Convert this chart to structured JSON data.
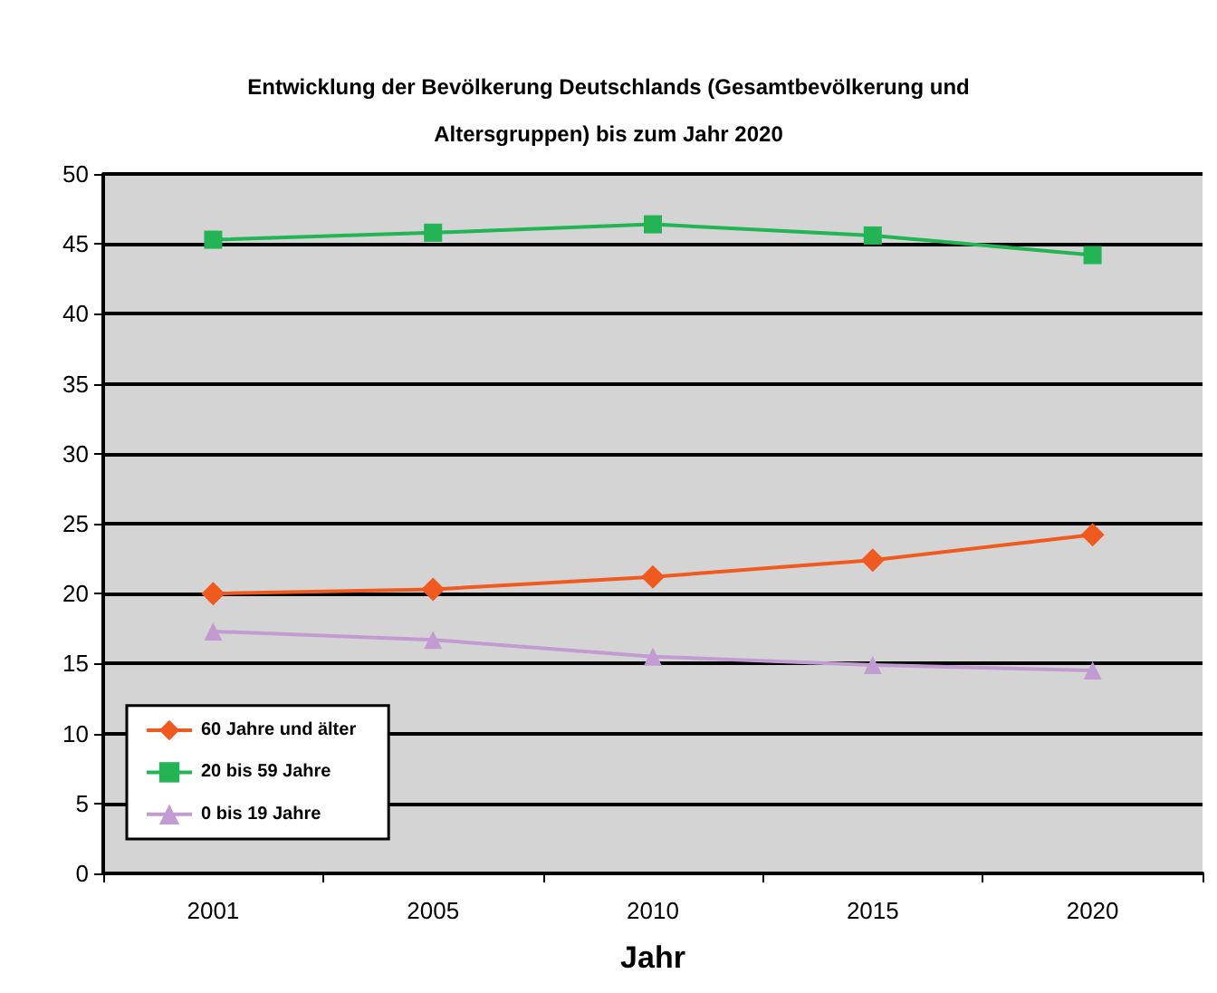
{
  "chart_data": {
    "type": "line",
    "title": "Entwicklung der Bevölkerung Deutschlands (Gesamtbevölkerung und\nAltersgruppen) bis zum Jahr 2020",
    "xlabel": "Jahr",
    "categories": [
      "2001",
      "2005",
      "2010",
      "2015",
      "2020"
    ],
    "series": [
      {
        "name": "60 Jahre und älter",
        "color": "#f05a1e",
        "marker": "diamond",
        "values": [
          20.0,
          20.3,
          21.2,
          22.4,
          24.2
        ]
      },
      {
        "name": "20 bis 59 Jahre",
        "color": "#22b455",
        "marker": "square",
        "values": [
          45.3,
          45.8,
          46.4,
          45.6,
          44.2
        ]
      },
      {
        "name": "0 bis 19 Jahre",
        "color": "#c39bd3",
        "marker": "triangle",
        "values": [
          17.3,
          16.7,
          15.5,
          14.9,
          14.5
        ]
      }
    ],
    "ylim": [
      0,
      50
    ],
    "yticks": [
      0,
      5,
      10,
      15,
      20,
      25,
      30,
      35,
      40,
      45,
      50
    ],
    "grid": "y",
    "legend": "bottom left",
    "line_style": "solid"
  }
}
